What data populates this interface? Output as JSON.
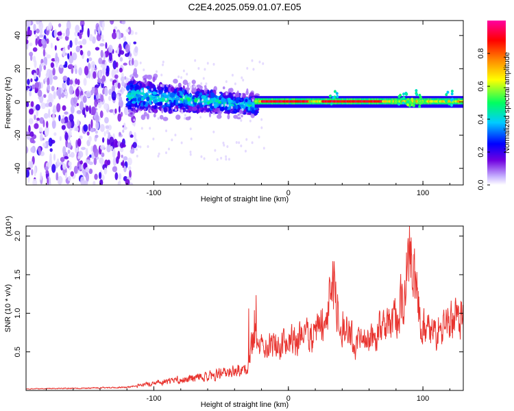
{
  "figure_title": "C2E4.2025.059.01.07.E05",
  "chart_data": [
    {
      "type": "heatmap",
      "title": "C2E4.2025.059.01.07.E05",
      "xlabel": "Height of straight line (km)",
      "ylabel": "Frequency (Hz)",
      "xlim": [
        -195,
        130
      ],
      "ylim": [
        -50,
        49
      ],
      "x_ticks": [
        "-100",
        "0",
        "100"
      ],
      "y_ticks": [
        "40",
        "20",
        "0",
        "-20",
        "-40"
      ],
      "colorbar": {
        "label": "Normalized spectral amplitude",
        "range": [
          0,
          1
        ],
        "ticks": [
          "0.0",
          "0.2",
          "0.4",
          "0.6",
          "0.8"
        ],
        "colors": [
          "#ffffff",
          "#c8b4ff",
          "#7000e0",
          "#0000ff",
          "#00ccff",
          "#00ff60",
          "#ffff00",
          "#ff8800",
          "#ff0000",
          "#ff00a0"
        ]
      },
      "description_regions": [
        {
          "x": [
            -195,
            -113
          ],
          "freq": [
            -50,
            49
          ],
          "amp": 0.15
        },
        {
          "x": [
            -113,
            -25
          ],
          "freq": [
            -10,
            15
          ],
          "amp": 0.3
        },
        {
          "x": [
            -25,
            130
          ],
          "freq": [
            -2,
            3
          ],
          "amp": 0.9
        }
      ]
    },
    {
      "type": "line",
      "xlabel": "Height of straight line (km)",
      "ylabel": "SNR (10 * v/v)",
      "y_multiplier": "(x10⁴)",
      "xlim": [
        -195,
        130
      ],
      "ylim": [
        0,
        2.13
      ],
      "x_ticks": [
        "-100",
        "0",
        "100"
      ],
      "y_ticks": [
        "0.5",
        "1.0",
        "1.5",
        "2.0"
      ],
      "color": "#e8322d",
      "envelope": {
        "x": [
          -195,
          -150,
          -120,
          -100,
          -80,
          -60,
          -40,
          -30,
          -26,
          -22,
          -10,
          0,
          10,
          20,
          28,
          34,
          40,
          50,
          60,
          70,
          80,
          86,
          90,
          96,
          102,
          110,
          120,
          130
        ],
        "y": [
          0.02,
          0.03,
          0.04,
          0.1,
          0.14,
          0.18,
          0.25,
          0.28,
          0.7,
          0.6,
          0.6,
          0.62,
          0.68,
          0.75,
          1.0,
          1.35,
          0.85,
          0.6,
          0.65,
          0.8,
          0.95,
          1.2,
          1.9,
          1.1,
          0.75,
          0.8,
          0.85,
          0.9
        ]
      }
    }
  ]
}
